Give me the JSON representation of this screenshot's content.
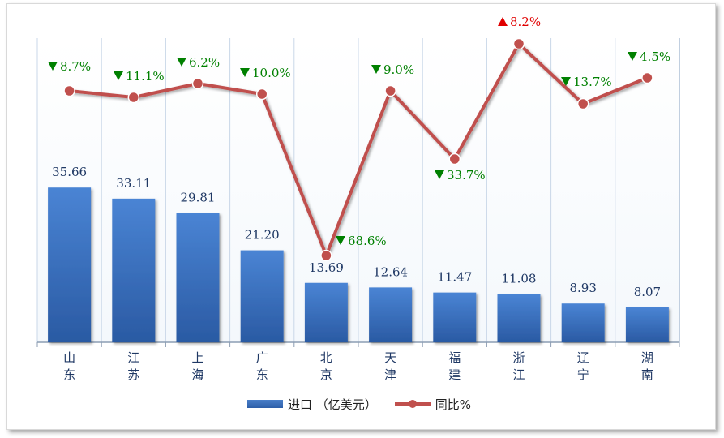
{
  "chart_data": {
    "type": "bar+line",
    "categories": [
      "山东",
      "江苏",
      "上海",
      "广东",
      "北京",
      "天津",
      "福建",
      "浙江",
      "辽宁",
      "湖南"
    ],
    "series": [
      {
        "name": "进口（亿美元）",
        "type": "bar",
        "values": [
          35.66,
          33.11,
          29.81,
          21.2,
          13.69,
          12.64,
          11.47,
          11.08,
          8.93,
          8.07
        ],
        "color": "#3a70bf"
      },
      {
        "name": "同比%",
        "type": "line",
        "values": [
          -8.7,
          -11.1,
          -6.2,
          -10.0,
          -68.6,
          -9.0,
          -33.7,
          8.2,
          -13.7,
          -4.5
        ],
        "color": "#c0504d"
      }
    ],
    "value_labels": [
      "35.66",
      "33.11",
      "29.81",
      "21.20",
      "13.69",
      "12.64",
      "11.47",
      "11.08",
      "8.93",
      "8.07"
    ],
    "pct_labels": [
      "8.7%",
      "11.1%",
      "6.2%",
      "10.0%",
      "68.6%",
      "9.0%",
      "33.7%",
      "8.2%",
      "13.7%",
      "4.5%"
    ],
    "up_color": "#e00000",
    "down_color": "#008000",
    "grid": true,
    "legend_position": "bottom"
  },
  "legend": {
    "bar_label": "进口 （亿美元）",
    "line_label": "同比%"
  }
}
